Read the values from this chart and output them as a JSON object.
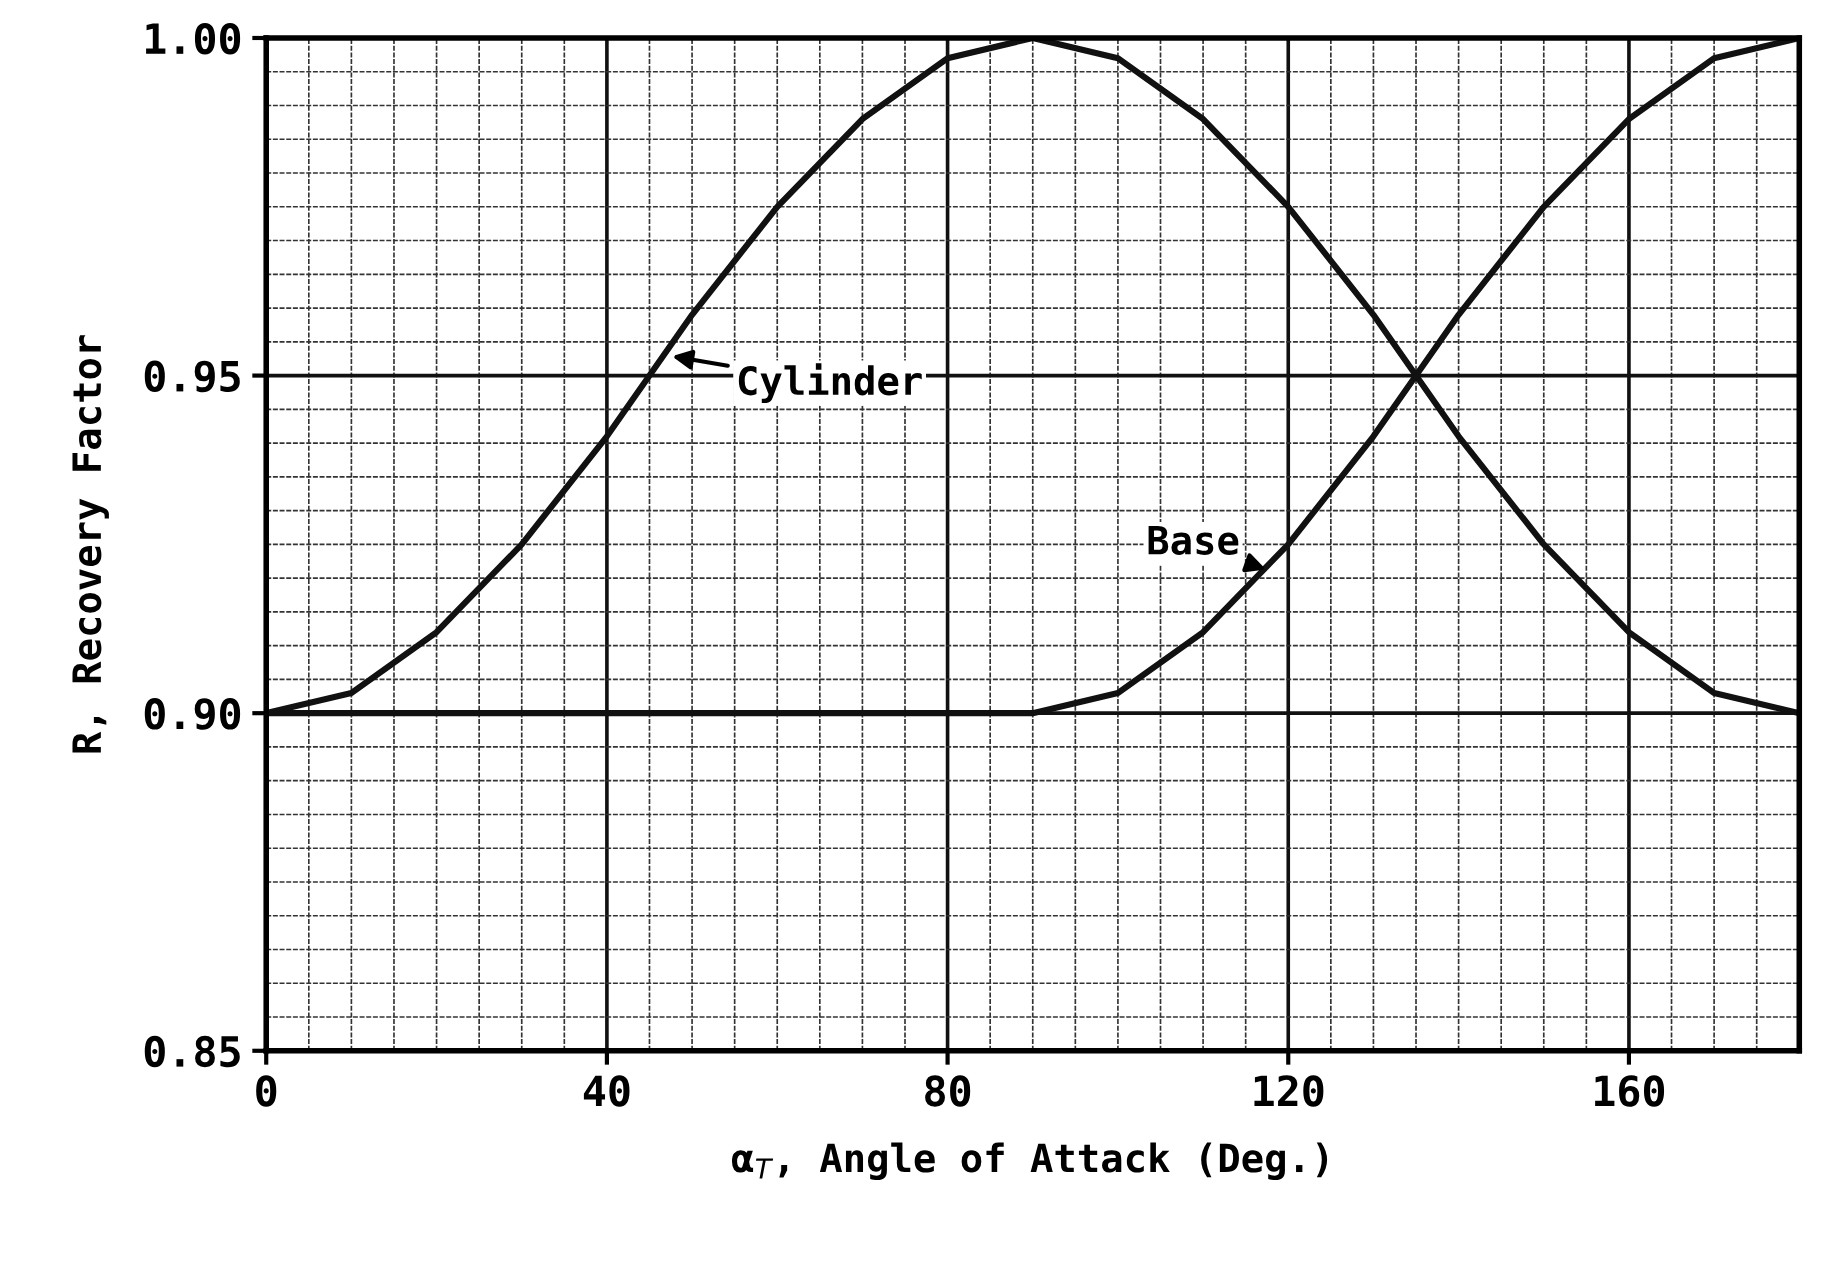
{
  "chart_data": {
    "type": "line",
    "xlabel": "α$_{T}$, Angle of Attack (Deg.)",
    "ylabel": "R, Recovery Factor",
    "x": [
      0,
      10,
      20,
      30,
      40,
      50,
      60,
      70,
      80,
      90,
      100,
      110,
      120,
      130,
      140,
      150,
      160,
      170,
      180
    ],
    "series": [
      {
        "color": "#111111",
        "values": [
          0.9,
          0.903,
          0.912,
          0.925,
          0.941,
          0.959,
          0.975,
          0.988,
          0.997,
          1.0,
          0.997,
          0.988,
          0.975,
          0.959,
          0.941,
          0.925,
          0.912,
          0.903,
          0.9
        ]
      },
      {
        "color": "#111111",
        "values": [
          0.9,
          0.9,
          0.9,
          0.9,
          0.9,
          0.9,
          0.9,
          0.9,
          0.9,
          0.9,
          0.903,
          0.912,
          0.925,
          0.941,
          0.959,
          0.975,
          0.988,
          0.997,
          1.0
        ]
      }
    ],
    "annotations": [
      {
        "text": "Cylinder",
        "x": 47,
        "y": 0.953
      },
      {
        "text": "Base",
        "x": 118,
        "y": 0.921
      }
    ],
    "xlim": [
      0,
      180
    ],
    "xticks": [
      0,
      40,
      80,
      120,
      160
    ],
    "ylim": [
      0.85,
      1.0
    ],
    "yticks": [
      {
        "value": 0.85,
        "label": "0.85"
      },
      {
        "value": 0.9,
        "label": "0.90"
      },
      {
        "value": 0.95,
        "label": "0.95"
      },
      {
        "value": 1.0,
        "label": "1.00"
      }
    ],
    "grid": true,
    "legend": false,
    "marker": "none",
    "line_style": "solid"
  }
}
